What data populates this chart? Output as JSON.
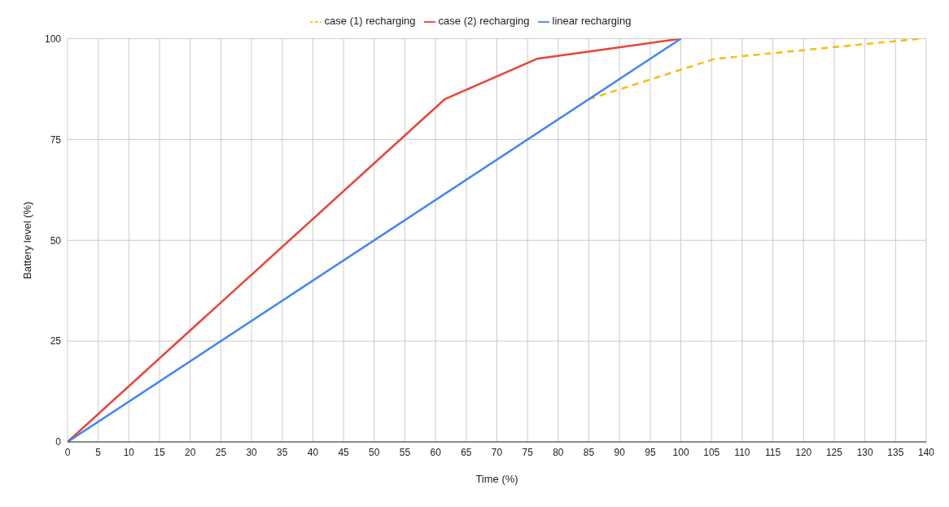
{
  "chart_data": {
    "type": "line",
    "xlabel": "Time (%)",
    "ylabel": "Battery level (%)",
    "series": [
      {
        "name": "case (1) recharging",
        "color": "#fbbc04",
        "line_style": "dashed",
        "x": [
          85,
          105.5,
          139
        ],
        "values": [
          85,
          95,
          100
        ]
      },
      {
        "name": "case (2) recharging",
        "color": "#ea4335",
        "x": [
          0,
          61.5,
          76.5,
          100
        ],
        "values": [
          0,
          85,
          95,
          100
        ]
      },
      {
        "name": "linear recharging",
        "color": "#4285f4",
        "x": [
          0,
          100
        ],
        "values": [
          0,
          100
        ]
      }
    ],
    "xlim": [
      0,
      140
    ],
    "xticks": [
      0,
      5,
      10,
      15,
      20,
      25,
      30,
      35,
      40,
      45,
      50,
      55,
      60,
      65,
      70,
      75,
      80,
      85,
      90,
      95,
      100,
      105,
      110,
      115,
      120,
      125,
      130,
      135,
      140
    ],
    "ylim": [
      0,
      100
    ],
    "yticks": [
      0,
      25,
      50,
      75,
      100
    ],
    "grid": true,
    "legend": "top",
    "marker": "none"
  }
}
